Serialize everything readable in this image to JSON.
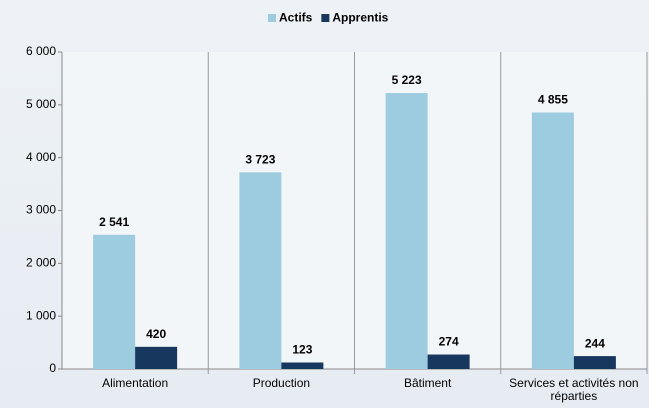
{
  "chart_data": {
    "type": "bar",
    "categories": [
      "Alimentation",
      "Production",
      "Bâtiment",
      "Services et activités non réparties"
    ],
    "series": [
      {
        "name": "Actifs",
        "color": "#9dcbe0",
        "values": [
          2541,
          3723,
          5223,
          4855
        ],
        "value_labels": [
          "2 541",
          "3 723",
          "5 223",
          "4 855"
        ]
      },
      {
        "name": "Apprentis",
        "color": "#17375e",
        "values": [
          420,
          123,
          274,
          244
        ],
        "value_labels": [
          "420",
          "123",
          "274",
          "244"
        ]
      }
    ],
    "ylim": [
      0,
      6000
    ],
    "yticks": [
      0,
      {
        "value": 1000,
        "label": "1 000"
      },
      {
        "value": 2000,
        "label": "2 000"
      },
      {
        "value": 3000,
        "label": "3 000"
      },
      {
        "value": 4000,
        "label": "4 000"
      },
      {
        "value": 5000,
        "label": "5 000"
      },
      {
        "value": 6000,
        "label": "6 000"
      }
    ],
    "grid": false,
    "legend": "top"
  }
}
